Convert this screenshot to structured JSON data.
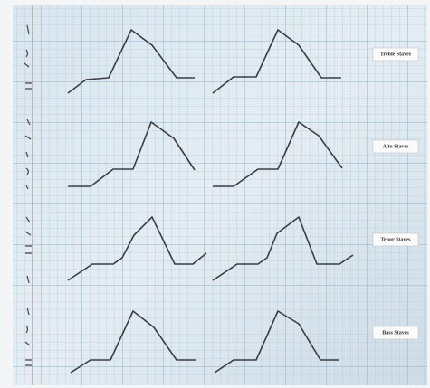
{
  "labels": [
    "Treble Staves",
    "Alto Staves",
    "Tenor Staves",
    "Bass Staves"
  ]
}
